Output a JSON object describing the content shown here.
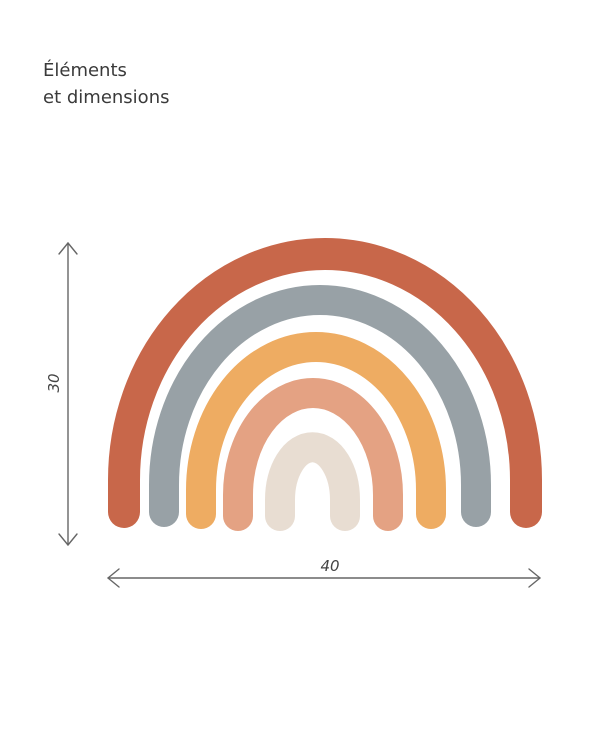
{
  "header": {
    "title_lines": [
      "Éléments",
      "et dimensions"
    ]
  },
  "dimensions": {
    "height": 30,
    "width": 40
  }
}
